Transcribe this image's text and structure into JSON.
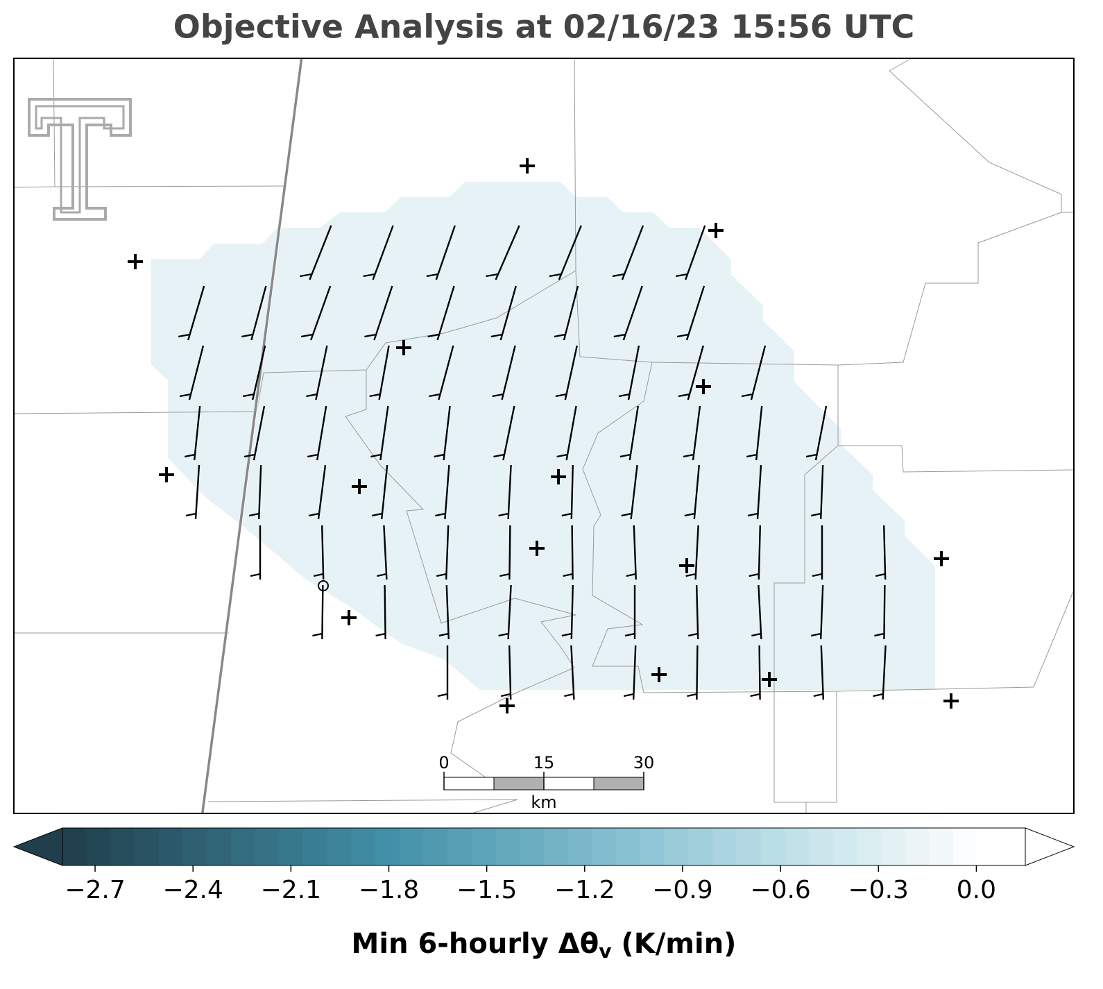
{
  "header": {
    "title": "Objective Analysis at 02/16/23 15:56 UTC"
  },
  "scale_bar": {
    "ticks": [
      0,
      15,
      30
    ],
    "unit": "km"
  },
  "colorbar": {
    "clim": [
      -2.8,
      0.15
    ],
    "ticks": [
      {
        "value": -2.7,
        "label": "−2.7"
      },
      {
        "value": -2.4,
        "label": "−2.4"
      },
      {
        "value": -2.1,
        "label": "−2.1"
      },
      {
        "value": -1.8,
        "label": "−1.8"
      },
      {
        "value": -1.5,
        "label": "−1.5"
      },
      {
        "value": -1.2,
        "label": "−1.2"
      },
      {
        "value": -0.9,
        "label": "−0.9"
      },
      {
        "value": -0.6,
        "label": "−0.6"
      },
      {
        "value": -0.3,
        "label": "−0.3"
      },
      {
        "value": 0,
        "label": "0.0"
      }
    ],
    "label_main": "Min 6-hourly Δθ",
    "label_sub": "v",
    "label_end": " (K/min)"
  }
}
